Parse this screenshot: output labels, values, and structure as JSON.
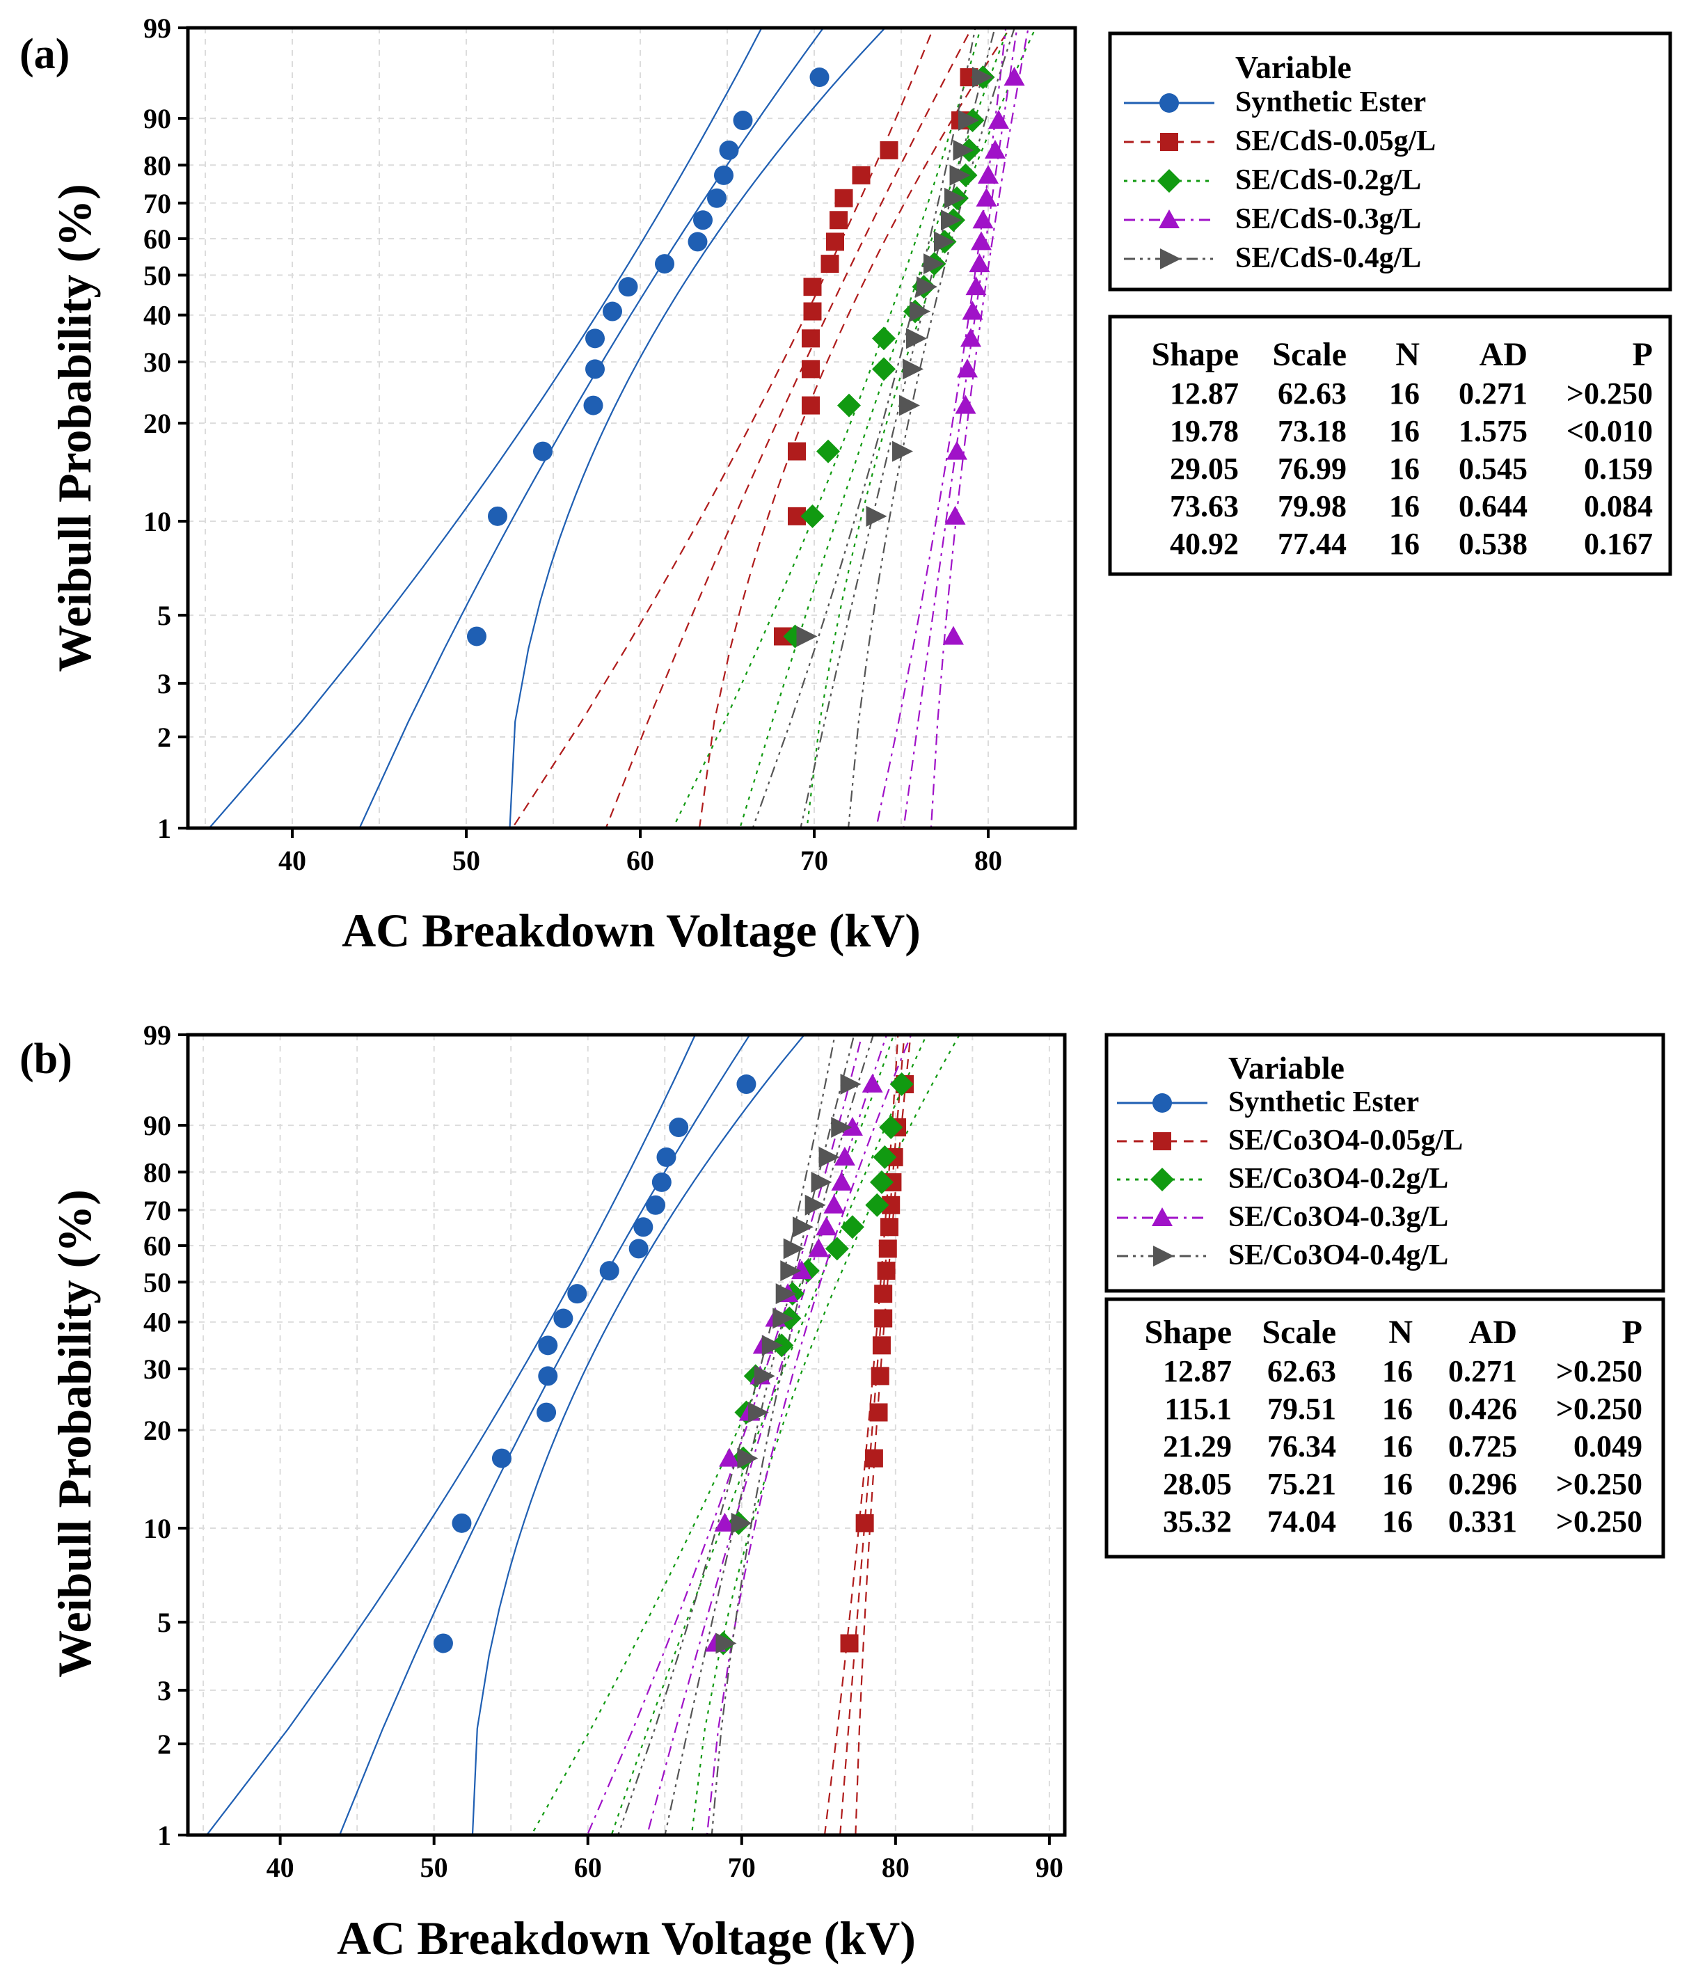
{
  "chart_data": [
    {
      "panel": "(a)",
      "type": "scatter",
      "xlabel": "AC Breakdown Voltage (kV)",
      "ylabel": "Weibull Probability (%)",
      "xlim": [
        34,
        85
      ],
      "ylim": [
        1,
        99
      ],
      "xticks": [
        40,
        50,
        60,
        70,
        80
      ],
      "yticks": [
        1,
        2,
        3,
        5,
        10,
        20,
        30,
        40,
        50,
        60,
        70,
        80,
        90,
        99
      ],
      "grid": true,
      "legend": {
        "title": "Variable",
        "entries": [
          "Synthetic Ester",
          "SE/CdS-0.05g/L",
          "SE/CdS-0.2g/L",
          "SE/CdS-0.3g/L",
          "SE/CdS-0.4g/L"
        ]
      },
      "stats": {
        "headers": [
          "Shape",
          "Scale",
          "N",
          "AD",
          "P"
        ],
        "rows": [
          [
            "12.87",
            "62.63",
            "16",
            "0.271",
            ">0.250"
          ],
          [
            "19.78",
            "73.18",
            "16",
            "1.575",
            "<0.010"
          ],
          [
            "29.05",
            "76.99",
            "16",
            "0.545",
            "0.159"
          ],
          [
            "73.63",
            "79.98",
            "16",
            "0.644",
            "0.084"
          ],
          [
            "40.92",
            "77.44",
            "16",
            "0.538",
            "0.167"
          ]
        ]
      },
      "series": [
        {
          "name": "Synthetic Ester",
          "color": "#1f5fb3",
          "marker": "circle",
          "line": "solid",
          "shape": 12.87,
          "scale": 62.63,
          "ci": 0.55,
          "values": [
            50.6,
            51.8,
            54.4,
            57.3,
            57.4,
            57.4,
            58.4,
            59.3,
            61.4,
            63.3,
            63.6,
            64.4,
            64.8,
            65.1,
            65.9,
            70.3
          ]
        },
        {
          "name": "SE/CdS-0.05g/L",
          "color": "#b01c1c",
          "marker": "square",
          "line": "dash",
          "shape": 19.78,
          "scale": 73.18,
          "ci": 0.45,
          "values": [
            68.2,
            69.0,
            69.0,
            69.8,
            69.8,
            69.8,
            69.9,
            69.9,
            70.9,
            71.2,
            71.4,
            71.7,
            72.7,
            74.3,
            78.4,
            78.9
          ]
        },
        {
          "name": "SE/CdS-0.2g/L",
          "color": "#119a11",
          "marker": "diamond",
          "line": "dot",
          "shape": 29.05,
          "scale": 76.99,
          "ci": 0.45,
          "values": [
            68.9,
            69.9,
            70.8,
            72.0,
            74.0,
            74.0,
            75.8,
            76.3,
            76.9,
            77.5,
            78.0,
            78.2,
            78.7,
            78.9,
            79.1,
            79.7
          ]
        },
        {
          "name": "SE/CdS-0.3g/L",
          "color": "#a012c8",
          "marker": "triangle",
          "line": "dashdot",
          "shape": 73.63,
          "scale": 79.98,
          "ci": 0.45,
          "values": [
            78.0,
            78.1,
            78.2,
            78.7,
            78.8,
            79.0,
            79.1,
            79.3,
            79.5,
            79.6,
            79.7,
            79.9,
            80.0,
            80.4,
            80.6,
            81.5
          ]
        },
        {
          "name": "SE/CdS-0.4g/L",
          "color": "#555555",
          "marker": "triangle-right",
          "line": "dashdotdot",
          "shape": 40.92,
          "scale": 77.44,
          "ci": 0.45,
          "values": [
            69.5,
            73.5,
            75.0,
            75.4,
            75.6,
            75.8,
            76.0,
            76.4,
            76.8,
            77.4,
            77.8,
            78.0,
            78.3,
            78.5,
            78.8,
            79.6
          ]
        }
      ]
    },
    {
      "panel": "(b)",
      "type": "scatter",
      "xlabel": "AC Breakdown Voltage (kV)",
      "ylabel": "Weibull Probability (%)",
      "xlim": [
        34,
        91
      ],
      "ylim": [
        1,
        99
      ],
      "xticks": [
        40,
        50,
        60,
        70,
        80,
        90
      ],
      "yticks": [
        1,
        2,
        3,
        5,
        10,
        20,
        30,
        40,
        50,
        60,
        70,
        80,
        90,
        99
      ],
      "grid": true,
      "legend": {
        "title": "Variable",
        "entries": [
          "Synthetic Ester",
          "SE/Co3O4-0.05g/L",
          "SE/Co3O4-0.2g/L",
          "SE/Co3O4-0.3g/L",
          "SE/Co3O4-0.4g/L"
        ]
      },
      "stats": {
        "headers": [
          "Shape",
          "Scale",
          "N",
          "AD",
          "P"
        ],
        "rows": [
          [
            "12.87",
            "62.63",
            "16",
            "0.271",
            ">0.250"
          ],
          [
            "115.1",
            "79.51",
            "16",
            "0.426",
            ">0.250"
          ],
          [
            "21.29",
            "76.34",
            "16",
            "0.725",
            "0.049"
          ],
          [
            "28.05",
            "75.21",
            "16",
            "0.296",
            ">0.250"
          ],
          [
            "35.32",
            "74.04",
            "16",
            "0.331",
            ">0.250"
          ]
        ]
      },
      "series": [
        {
          "name": "Synthetic Ester",
          "color": "#1f5fb3",
          "marker": "circle",
          "line": "solid",
          "shape": 12.87,
          "scale": 62.63,
          "ci": 0.55,
          "values": [
            50.6,
            51.8,
            54.4,
            57.3,
            57.4,
            57.4,
            58.4,
            59.3,
            61.4,
            63.3,
            63.6,
            64.4,
            64.8,
            65.1,
            65.9,
            70.3
          ]
        },
        {
          "name": "SE/Co3O4-0.05g/L",
          "color": "#b01c1c",
          "marker": "square",
          "line": "dash",
          "shape": 115.1,
          "scale": 79.51,
          "ci": 0.45,
          "values": [
            77.0,
            78.0,
            78.6,
            78.9,
            79.0,
            79.1,
            79.2,
            79.2,
            79.4,
            79.5,
            79.6,
            79.7,
            79.8,
            79.9,
            80.1,
            80.6
          ]
        },
        {
          "name": "SE/Co3O4-0.2g/L",
          "color": "#119a11",
          "marker": "diamond",
          "line": "dot",
          "shape": 21.29,
          "scale": 76.34,
          "ci": 0.45,
          "values": [
            68.8,
            69.8,
            70.1,
            70.3,
            70.9,
            72.6,
            73.1,
            73.3,
            74.3,
            76.2,
            77.2,
            78.8,
            79.1,
            79.3,
            79.7,
            80.4
          ]
        },
        {
          "name": "SE/Co3O4-0.3g/L",
          "color": "#a012c8",
          "marker": "triangle",
          "line": "dashdot",
          "shape": 28.05,
          "scale": 75.21,
          "ci": 0.45,
          "values": [
            68.3,
            68.9,
            69.2,
            70.5,
            71.2,
            71.4,
            72.2,
            73.0,
            73.9,
            75.0,
            75.5,
            76.0,
            76.5,
            76.7,
            77.2,
            78.5
          ]
        },
        {
          "name": "SE/Co3O4-0.4g/L",
          "color": "#555555",
          "marker": "triangle-right",
          "line": "dashdotdot",
          "shape": 35.32,
          "scale": 74.04,
          "ci": 0.45,
          "values": [
            68.9,
            69.9,
            70.3,
            71.0,
            71.4,
            71.9,
            72.6,
            72.8,
            73.1,
            73.3,
            73.9,
            74.7,
            75.1,
            75.6,
            76.4,
            77.0
          ]
        }
      ]
    }
  ]
}
